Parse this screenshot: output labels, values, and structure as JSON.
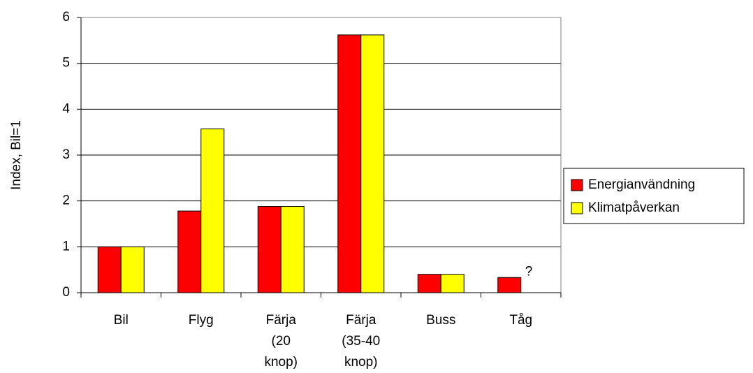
{
  "chart_data": {
    "type": "bar",
    "y_label": "Index, Bil=1",
    "categories": [
      "Bil",
      "Flyg",
      "Färja (20 knop)",
      "Färja (35-40 knop)",
      "Buss",
      "Tåg"
    ],
    "series": [
      {
        "name": "Energianvändning",
        "color": "#ff0000",
        "values": [
          1,
          1.78,
          1.88,
          5.62,
          0.4,
          0.33
        ]
      },
      {
        "name": "Klimatpåverkan",
        "color": "#ffff00",
        "values": [
          1,
          3.57,
          1.88,
          5.62,
          0.4,
          null
        ]
      }
    ],
    "annotation": "?",
    "ylim": [
      0,
      6
    ],
    "yticks": [
      0,
      1,
      2,
      3,
      4,
      5,
      6
    ],
    "grid": true,
    "legend": "right"
  }
}
